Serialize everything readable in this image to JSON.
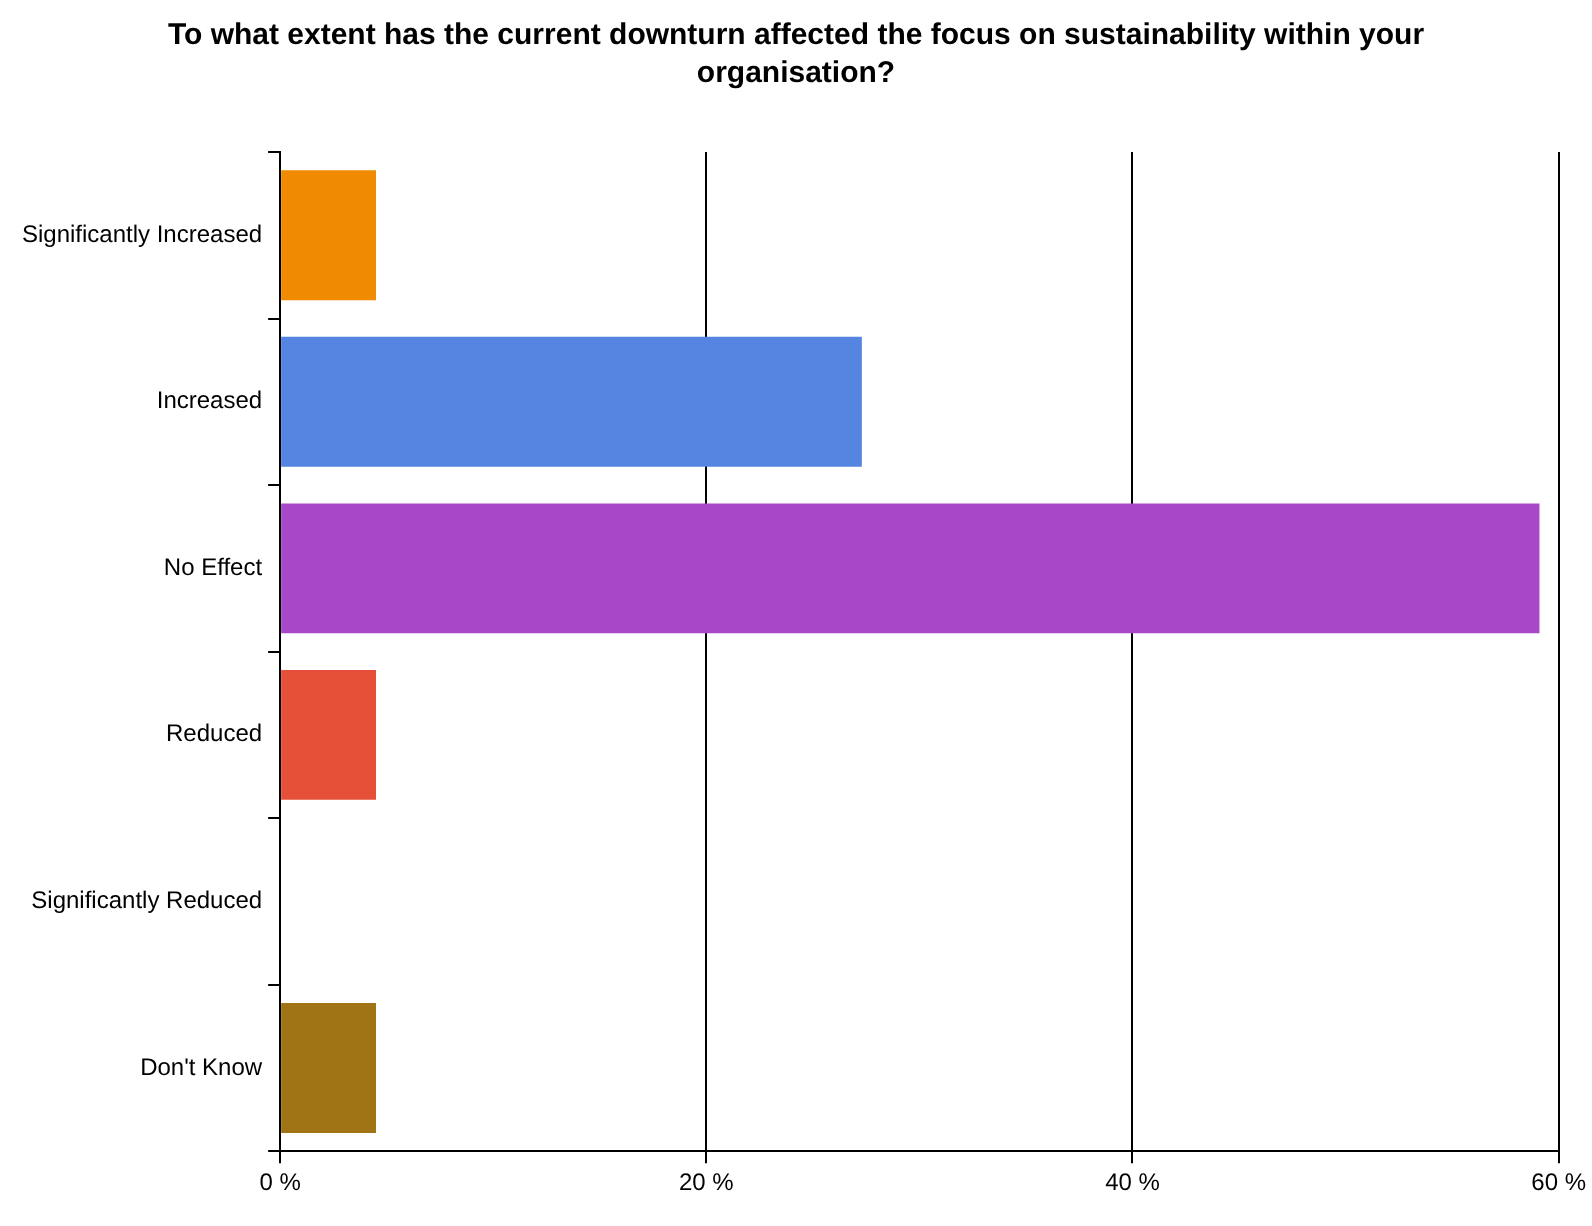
{
  "chart_data": {
    "type": "bar",
    "orientation": "horizontal",
    "title": "To what extent has the current downturn affected the focus on sustainability within your organisation?",
    "categories": [
      "Significantly Increased",
      "Increased",
      "No Effect",
      "Reduced",
      "Significantly Reduced",
      "Don't Know"
    ],
    "values": [
      4.5,
      27.3,
      59.1,
      4.5,
      0,
      4.5
    ],
    "colors": [
      "#f08a00",
      "#5585e0",
      "#a848c8",
      "#e65038",
      "#888888",
      "#a07414"
    ],
    "xlim": [
      0,
      60
    ],
    "xticks": [
      {
        "value": 0,
        "label": "0 %"
      },
      {
        "value": 20,
        "label": "20 %"
      },
      {
        "value": 40,
        "label": "40 %"
      },
      {
        "value": 60,
        "label": "60 %"
      }
    ],
    "grid": "x"
  }
}
